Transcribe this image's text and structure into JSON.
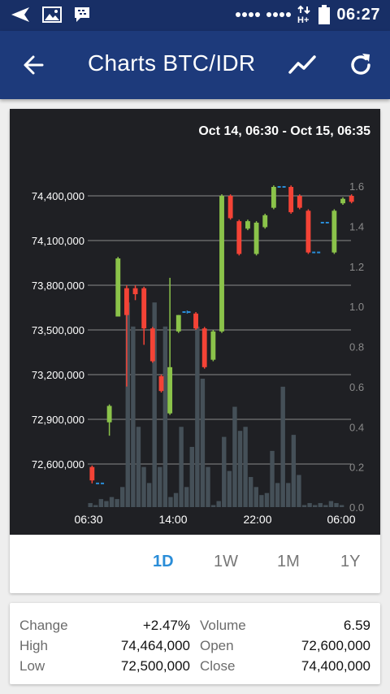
{
  "status_bar": {
    "time": "06:27",
    "icons": [
      "navigation-arrow-icon",
      "image-icon",
      "bbm-icon",
      "signal-icon",
      "battery-icon"
    ]
  },
  "app_bar": {
    "title": "Charts BTC/IDR",
    "icons": [
      "back-arrow-icon",
      "trend-line-icon",
      "refresh-icon"
    ]
  },
  "chart_data": {
    "type": "candlestick",
    "title": "Oct 14, 06:30 - Oct 15, 06:35",
    "y_left": {
      "ticks": [
        "74,400,000",
        "74,100,000",
        "73,800,000",
        "73,500,000",
        "73,200,000",
        "72,900,000",
        "72,600,000"
      ],
      "tick_values": [
        74400000,
        74100000,
        73800000,
        73500000,
        73200000,
        72900000,
        72600000
      ]
    },
    "y_right": {
      "ticks": [
        "1.6",
        "1.4",
        "1.2",
        "1.0",
        "0.8",
        "0.6",
        "0.4",
        "0.2",
        "0.0"
      ],
      "tick_values": [
        1.6,
        1.4,
        1.2,
        1.0,
        0.8,
        0.6,
        0.4,
        0.2,
        0.0
      ]
    },
    "x_ticks": [
      "06:30",
      "14:00",
      "22:00",
      "06:00"
    ],
    "candles": [
      {
        "open": 72580000,
        "close": 72490000,
        "high": 72590000,
        "low": 72470000
      },
      {
        "open": 72470000,
        "close": 72470000,
        "high": 72470000,
        "low": 72470000
      },
      {
        "open": 72880000,
        "close": 72990000,
        "high": 73000000,
        "low": 72790000
      },
      {
        "open": 73590000,
        "close": 73980000,
        "high": 73990000,
        "low": 73590000
      },
      {
        "open": 73780000,
        "close": 73600000,
        "high": 73800000,
        "low": 73120000
      },
      {
        "open": 73780000,
        "close": 73740000,
        "high": 73800000,
        "low": 73700000
      },
      {
        "open": 73780000,
        "close": 73510000,
        "high": 73790000,
        "low": 73400000
      },
      {
        "open": 73510000,
        "close": 73290000,
        "high": 73520000,
        "low": 73280000
      },
      {
        "open": 73190000,
        "close": 73090000,
        "high": 73200000,
        "low": 73080000
      },
      {
        "open": 72940000,
        "close": 73250000,
        "high": 73850000,
        "low": 72930000
      },
      {
        "open": 73490000,
        "close": 73600000,
        "high": 73600000,
        "low": 73480000
      },
      {
        "open": 73620000,
        "close": 73620000,
        "high": 73630000,
        "low": 73610000
      },
      {
        "open": 73610000,
        "close": 73510000,
        "high": 73620000,
        "low": 73500000
      },
      {
        "open": 73510000,
        "close": 73250000,
        "high": 73520000,
        "low": 73240000
      },
      {
        "open": 73300000,
        "close": 73490000,
        "high": 73500000,
        "low": 73290000
      },
      {
        "open": 73490000,
        "close": 74400000,
        "high": 74410000,
        "low": 73480000
      },
      {
        "open": 74400000,
        "close": 74250000,
        "high": 74410000,
        "low": 74240000
      },
      {
        "open": 74230000,
        "close": 74010000,
        "high": 74240000,
        "low": 74000000
      },
      {
        "open": 74180000,
        "close": 74230000,
        "high": 74240000,
        "low": 74170000
      },
      {
        "open": 74010000,
        "close": 74220000,
        "high": 74230000,
        "low": 74000000
      },
      {
        "open": 74190000,
        "close": 74270000,
        "high": 74280000,
        "low": 74180000
      },
      {
        "open": 74320000,
        "close": 74460000,
        "high": 74470000,
        "low": 74310000
      },
      {
        "open": 74460000,
        "close": 74460000,
        "high": 74460000,
        "low": 74460000
      },
      {
        "open": 74460000,
        "close": 74290000,
        "high": 74470000,
        "low": 74280000
      },
      {
        "open": 74400000,
        "close": 74320000,
        "high": 74410000,
        "low": 74310000
      },
      {
        "open": 74300000,
        "close": 74020000,
        "high": 74310000,
        "low": 74010000
      },
      {
        "open": 74020000,
        "close": 74020000,
        "high": 74020000,
        "low": 74020000
      },
      {
        "open": 74220000,
        "close": 74220000,
        "high": 74220000,
        "low": 74220000
      },
      {
        "open": 74020000,
        "close": 74300000,
        "high": 74310000,
        "low": 74010000
      },
      {
        "open": 74350000,
        "close": 74380000,
        "high": 74390000,
        "low": 74340000
      },
      {
        "open": 74400000,
        "close": 74360000,
        "high": 74410000,
        "low": 74350000
      }
    ],
    "volume": [
      0.02,
      0.01,
      0.04,
      0.03,
      0.05,
      0.04,
      0.1,
      1.02,
      0.9,
      0.4,
      0.2,
      0.12,
      1.02,
      0.2,
      0.9,
      0.05,
      0.07,
      0.4,
      0.1,
      0.3,
      0.9,
      0.64,
      0.2,
      0.01,
      0.03,
      0.35,
      0.18,
      0.5,
      0.38,
      0.4,
      0.15,
      0.1,
      0.06,
      0.07,
      0.28,
      0.12,
      0.6,
      0.12,
      0.36,
      0.16,
      0.01,
      0.02,
      0.01,
      0.02,
      0.01,
      0.03,
      0.02,
      0.01
    ],
    "grid": true,
    "colors": {
      "up": "#8bc34a",
      "down": "#f44336",
      "flat": "#2a8dd8",
      "volume": "#455058",
      "grid": "#8a8a8a"
    }
  },
  "ranges": [
    {
      "label": "1D",
      "active": true
    },
    {
      "label": "1W",
      "active": false
    },
    {
      "label": "1M",
      "active": false
    },
    {
      "label": "1Y",
      "active": false
    }
  ],
  "stats": {
    "change_label": "Change",
    "change_value": "+2.47%",
    "volume_label": "Volume",
    "volume_value": "6.59",
    "high_label": "High",
    "high_value": "74,464,000",
    "open_label": "Open",
    "open_value": "72,600,000",
    "low_label": "Low",
    "low_value": "72,500,000",
    "close_label": "Close",
    "close_value": "74,400,000"
  },
  "colors": {
    "status_bar": "#182f66",
    "app_bar": "#1d3a7b",
    "accent": "#2a8dd8"
  }
}
